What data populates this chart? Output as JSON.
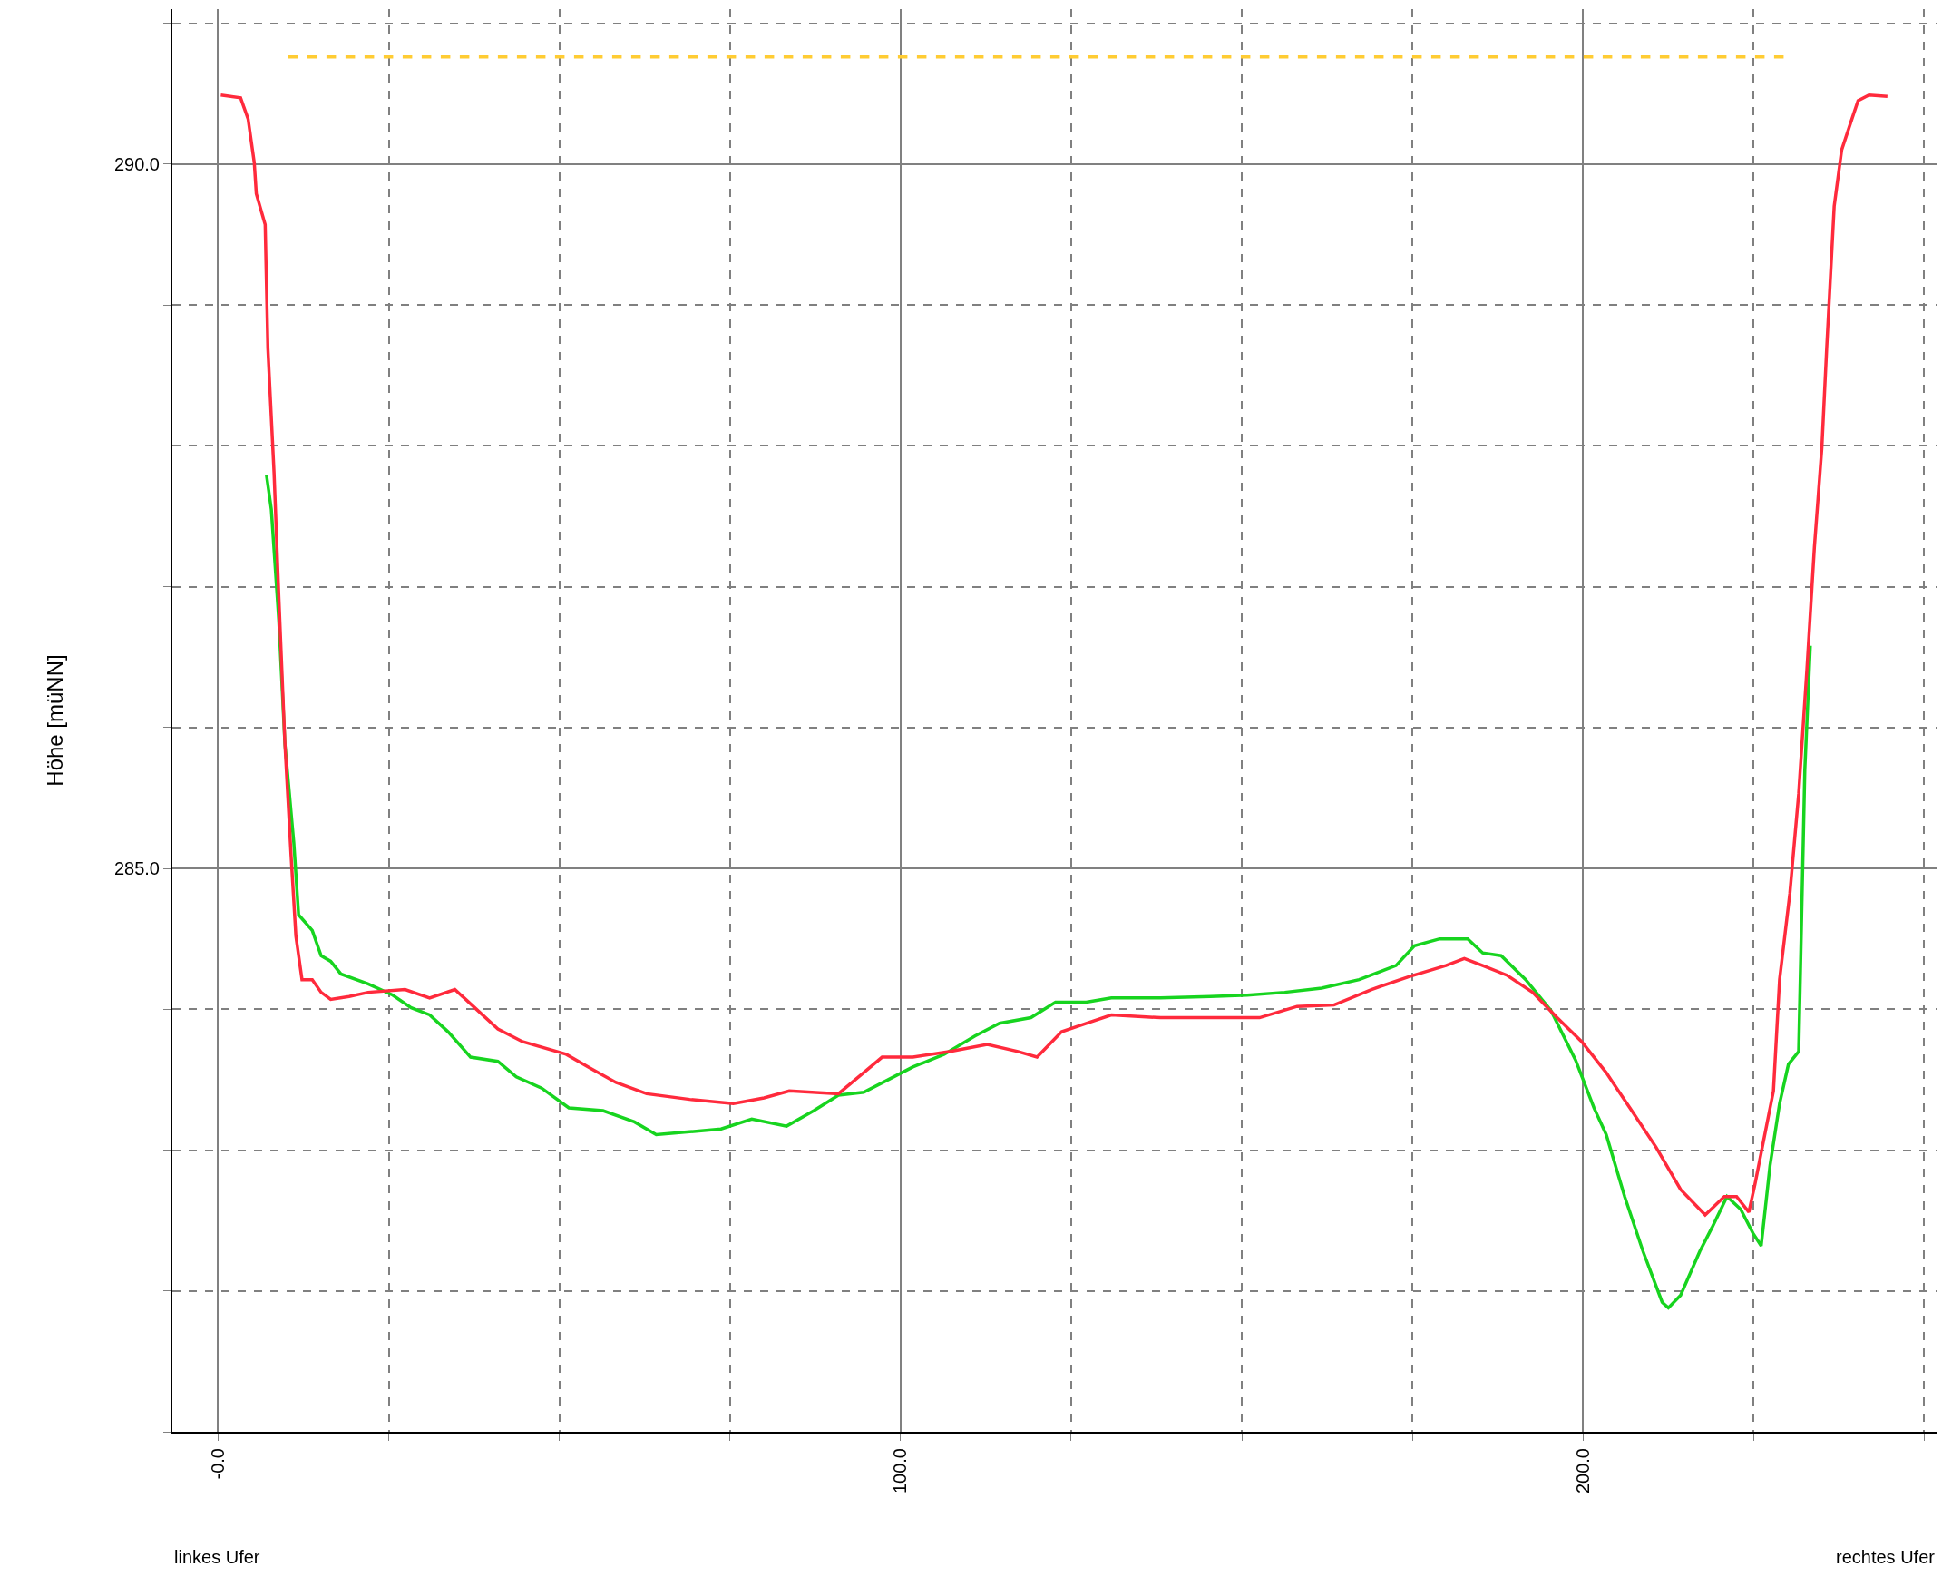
{
  "chart_data": {
    "type": "line",
    "ylabel": "Höhe [müNN]",
    "xlim": [
      -6.7,
      251.8
    ],
    "ylim": [
      281.0,
      291.1
    ],
    "xticks": [
      {
        "value": 0,
        "label": "-0.0"
      },
      {
        "value": 25,
        "label": null
      },
      {
        "value": 50,
        "label": null
      },
      {
        "value": 75,
        "label": null
      },
      {
        "value": 100,
        "label": "100.0"
      },
      {
        "value": 125,
        "label": null
      },
      {
        "value": 150,
        "label": null
      },
      {
        "value": 175,
        "label": null
      },
      {
        "value": 200,
        "label": "200.0"
      },
      {
        "value": 225,
        "label": null
      },
      {
        "value": 250,
        "label": null
      }
    ],
    "yticks": [
      {
        "value": 281,
        "label": null
      },
      {
        "value": 282,
        "label": null
      },
      {
        "value": 283,
        "label": null
      },
      {
        "value": 284,
        "label": null
      },
      {
        "value": 285,
        "label": "285.0"
      },
      {
        "value": 286,
        "label": null
      },
      {
        "value": 287,
        "label": null
      },
      {
        "value": 288,
        "label": null
      },
      {
        "value": 289,
        "label": null
      },
      {
        "value": 290,
        "label": "290.0"
      },
      {
        "value": 291,
        "label": null
      }
    ],
    "grid": true,
    "marker": "none",
    "annotations": [
      "linkes Ufer",
      "rechtes Ufer"
    ],
    "series": [
      {
        "color": "#ffcc33",
        "line_style": "dashed",
        "x": [
          10.3,
          230.1
        ],
        "values": [
          290.76,
          290.76
        ]
      },
      {
        "color": "#17d41f",
        "line_style": "solid",
        "x": [
          7.1,
          7.8,
          8.9,
          9.8,
          11.1,
          11.8,
          13.8,
          15.1,
          16.5,
          18.0,
          22.0,
          25.6,
          28.3,
          31.0,
          33.7,
          37.0,
          41.0,
          43.7,
          47.4,
          51.4,
          56.4,
          61.0,
          64.2,
          69.1,
          73.7,
          78.2,
          83.3,
          87.3,
          90.9,
          94.6,
          98.2,
          101.8,
          106.4,
          110.9,
          114.5,
          119.1,
          122.7,
          127.2,
          130.9,
          138.1,
          145.4,
          150.8,
          156.3,
          161.7,
          167.2,
          172.6,
          175.3,
          179.0,
          183.1,
          185.3,
          188.0,
          191.6,
          195.3,
          198.9,
          201.6,
          203.4,
          206.1,
          208.8,
          211.6,
          212.5,
          214.3,
          217.1,
          218.9,
          221.1,
          223.1,
          224.9,
          226.1,
          227.4,
          228.8,
          230.1,
          231.6,
          232.5,
          233.3
        ],
        "values": [
          287.79,
          287.55,
          286.76,
          285.88,
          285.18,
          284.67,
          284.56,
          284.38,
          284.34,
          284.25,
          284.18,
          284.1,
          284.01,
          283.96,
          283.84,
          283.66,
          283.63,
          283.52,
          283.44,
          283.3,
          283.28,
          283.2,
          283.11,
          283.13,
          283.15,
          283.22,
          283.17,
          283.28,
          283.39,
          283.41,
          283.5,
          283.59,
          283.68,
          283.81,
          283.9,
          283.94,
          284.05,
          284.05,
          284.08,
          284.08,
          284.09,
          284.1,
          284.12,
          284.15,
          284.21,
          284.31,
          284.45,
          284.5,
          284.5,
          284.4,
          284.38,
          284.21,
          283.99,
          283.64,
          283.3,
          283.11,
          282.67,
          282.28,
          281.92,
          281.88,
          281.97,
          282.28,
          282.45,
          282.67,
          282.58,
          282.41,
          282.32,
          282.89,
          283.33,
          283.61,
          283.7,
          285.7,
          286.58
        ]
      },
      {
        "color": "#ff2a3c",
        "line_style": "solid",
        "x": [
          0.4,
          3.3,
          4.4,
          5.3,
          5.6,
          6.9,
          7.3,
          8.2,
          8.9,
          9.8,
          10.7,
          11.4,
          12.3,
          13.8,
          15.1,
          16.5,
          19.2,
          22.0,
          27.4,
          31.0,
          34.7,
          37.4,
          41.0,
          44.6,
          51.0,
          54.6,
          58.3,
          62.8,
          69.1,
          75.5,
          80.0,
          83.7,
          90.9,
          94.6,
          97.3,
          101.8,
          107.3,
          112.7,
          117.2,
          120.0,
          123.6,
          127.2,
          130.9,
          138.1,
          145.4,
          152.6,
          158.1,
          163.5,
          169.0,
          174.4,
          179.9,
          182.6,
          185.3,
          188.9,
          192.6,
          196.2,
          199.8,
          203.4,
          207.0,
          210.7,
          214.3,
          217.9,
          220.7,
          222.5,
          224.3,
          225.2,
          227.9,
          228.8,
          230.3,
          231.6,
          232.8,
          233.9,
          235.0,
          235.7,
          236.8,
          237.9,
          239.4,
          240.3,
          241.9,
          244.6
        ],
        "values": [
          290.49,
          290.47,
          290.32,
          290.01,
          289.79,
          289.57,
          288.69,
          287.81,
          286.93,
          285.88,
          285.09,
          284.52,
          284.21,
          284.21,
          284.12,
          284.07,
          284.09,
          284.12,
          284.14,
          284.08,
          284.14,
          284.02,
          283.86,
          283.77,
          283.68,
          283.58,
          283.48,
          283.4,
          283.36,
          283.33,
          283.37,
          283.42,
          283.4,
          283.55,
          283.66,
          283.66,
          283.7,
          283.75,
          283.7,
          283.66,
          283.84,
          283.9,
          283.96,
          283.94,
          283.94,
          283.94,
          284.02,
          284.03,
          284.14,
          284.23,
          284.31,
          284.36,
          284.31,
          284.24,
          284.12,
          283.94,
          283.77,
          283.55,
          283.29,
          283.02,
          282.72,
          282.54,
          282.67,
          282.67,
          282.56,
          282.76,
          283.42,
          284.21,
          284.82,
          285.53,
          286.41,
          287.28,
          287.99,
          288.69,
          289.7,
          290.1,
          290.32,
          290.45,
          290.49,
          290.48
        ]
      }
    ]
  }
}
